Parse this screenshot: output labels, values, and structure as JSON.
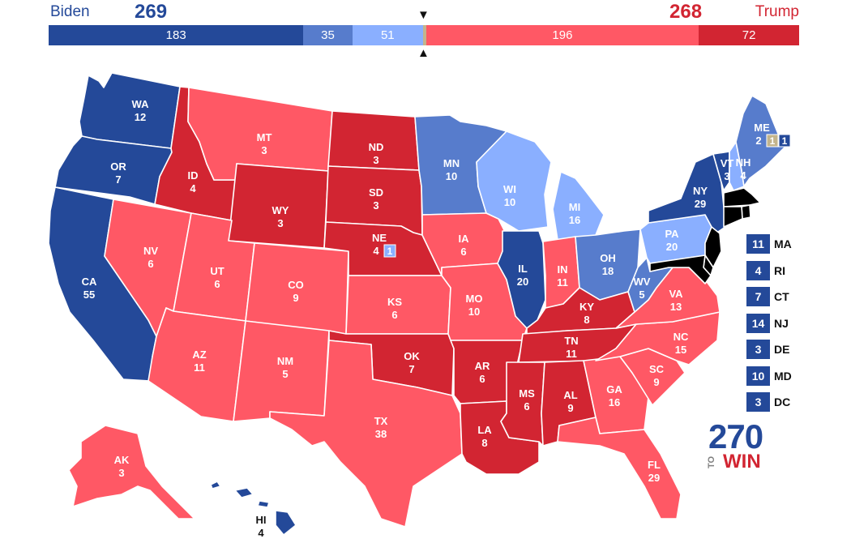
{
  "header": {
    "dem_name": "Biden",
    "rep_name": "Trump",
    "dem_total": "269",
    "rep_total": "268",
    "bar_segments": [
      {
        "label": "183",
        "value": 183,
        "color": "#244999"
      },
      {
        "label": "35",
        "value": 35,
        "color": "#577CCC"
      },
      {
        "label": "51",
        "value": 51,
        "color": "#8AAFFF"
      },
      {
        "label": "",
        "value": 2,
        "color": "#C3B48C"
      },
      {
        "label": "196",
        "value": 196,
        "color": "#FF5865"
      },
      {
        "label": "72",
        "value": 72,
        "color": "#D22532"
      }
    ],
    "marker_top": "▼",
    "marker_bottom": "▲"
  },
  "colors": {
    "safe_dem": "#244999",
    "likely_dem": "#577CCC",
    "lean_dem": "#8AAFFF",
    "tossup": "#C3B48C",
    "lean_rep": "#FF5865",
    "safe_rep": "#D22532"
  },
  "states": [
    {
      "abbr": "WA",
      "ev": "12",
      "rating": "safe_dem"
    },
    {
      "abbr": "OR",
      "ev": "7",
      "rating": "safe_dem"
    },
    {
      "abbr": "CA",
      "ev": "55",
      "rating": "safe_dem"
    },
    {
      "abbr": "NV",
      "ev": "6",
      "rating": "lean_rep"
    },
    {
      "abbr": "ID",
      "ev": "4",
      "rating": "safe_rep"
    },
    {
      "abbr": "MT",
      "ev": "3",
      "rating": "lean_rep"
    },
    {
      "abbr": "WY",
      "ev": "3",
      "rating": "safe_rep"
    },
    {
      "abbr": "UT",
      "ev": "6",
      "rating": "lean_rep"
    },
    {
      "abbr": "AZ",
      "ev": "11",
      "rating": "lean_rep"
    },
    {
      "abbr": "CO",
      "ev": "9",
      "rating": "lean_rep"
    },
    {
      "abbr": "NM",
      "ev": "5",
      "rating": "lean_rep"
    },
    {
      "abbr": "ND",
      "ev": "3",
      "rating": "safe_rep"
    },
    {
      "abbr": "SD",
      "ev": "3",
      "rating": "safe_rep"
    },
    {
      "abbr": "NE",
      "ev": "4",
      "rating": "safe_rep",
      "split_ev": "1",
      "split_rating": "lean_dem"
    },
    {
      "abbr": "KS",
      "ev": "6",
      "rating": "lean_rep"
    },
    {
      "abbr": "OK",
      "ev": "7",
      "rating": "safe_rep"
    },
    {
      "abbr": "TX",
      "ev": "38",
      "rating": "lean_rep"
    },
    {
      "abbr": "MN",
      "ev": "10",
      "rating": "likely_dem"
    },
    {
      "abbr": "IA",
      "ev": "6",
      "rating": "lean_rep"
    },
    {
      "abbr": "MO",
      "ev": "10",
      "rating": "lean_rep"
    },
    {
      "abbr": "AR",
      "ev": "6",
      "rating": "safe_rep"
    },
    {
      "abbr": "LA",
      "ev": "8",
      "rating": "safe_rep"
    },
    {
      "abbr": "WI",
      "ev": "10",
      "rating": "lean_dem"
    },
    {
      "abbr": "IL",
      "ev": "20",
      "rating": "safe_dem"
    },
    {
      "abbr": "MI",
      "ev": "16",
      "rating": "lean_dem"
    },
    {
      "abbr": "IN",
      "ev": "11",
      "rating": "lean_rep"
    },
    {
      "abbr": "OH",
      "ev": "18",
      "rating": "likely_dem"
    },
    {
      "abbr": "KY",
      "ev": "8",
      "rating": "safe_rep"
    },
    {
      "abbr": "TN",
      "ev": "11",
      "rating": "safe_rep"
    },
    {
      "abbr": "MS",
      "ev": "6",
      "rating": "safe_rep"
    },
    {
      "abbr": "AL",
      "ev": "9",
      "rating": "safe_rep"
    },
    {
      "abbr": "GA",
      "ev": "16",
      "rating": "lean_rep"
    },
    {
      "abbr": "FL",
      "ev": "29",
      "rating": "lean_rep"
    },
    {
      "abbr": "SC",
      "ev": "9",
      "rating": "lean_rep"
    },
    {
      "abbr": "NC",
      "ev": "15",
      "rating": "lean_rep"
    },
    {
      "abbr": "VA",
      "ev": "13",
      "rating": "lean_rep"
    },
    {
      "abbr": "WV",
      "ev": "5",
      "rating": "likely_dem"
    },
    {
      "abbr": "PA",
      "ev": "20",
      "rating": "lean_dem"
    },
    {
      "abbr": "NY",
      "ev": "29",
      "rating": "safe_dem"
    },
    {
      "abbr": "VT",
      "ev": "3",
      "rating": "safe_dem"
    },
    {
      "abbr": "NH",
      "ev": "4",
      "rating": "lean_dem"
    },
    {
      "abbr": "ME",
      "ev": "2",
      "rating": "likely_dem",
      "split_ev": "1",
      "split_rating": "tossup",
      "split_ev2": "1",
      "split_rating2": "safe_dem"
    },
    {
      "abbr": "AK",
      "ev": "3",
      "rating": "lean_rep"
    },
    {
      "abbr": "HI",
      "ev": "4",
      "rating": "safe_dem"
    }
  ],
  "small_states": [
    {
      "ev": "11",
      "abbr": "MA"
    },
    {
      "ev": "4",
      "abbr": "RI"
    },
    {
      "ev": "7",
      "abbr": "CT"
    },
    {
      "ev": "14",
      "abbr": "NJ"
    },
    {
      "ev": "3",
      "abbr": "DE"
    },
    {
      "ev": "10",
      "abbr": "MD"
    },
    {
      "ev": "3",
      "abbr": "DC"
    }
  ],
  "logo": {
    "number": "270",
    "to": "TO",
    "win": "WIN"
  }
}
